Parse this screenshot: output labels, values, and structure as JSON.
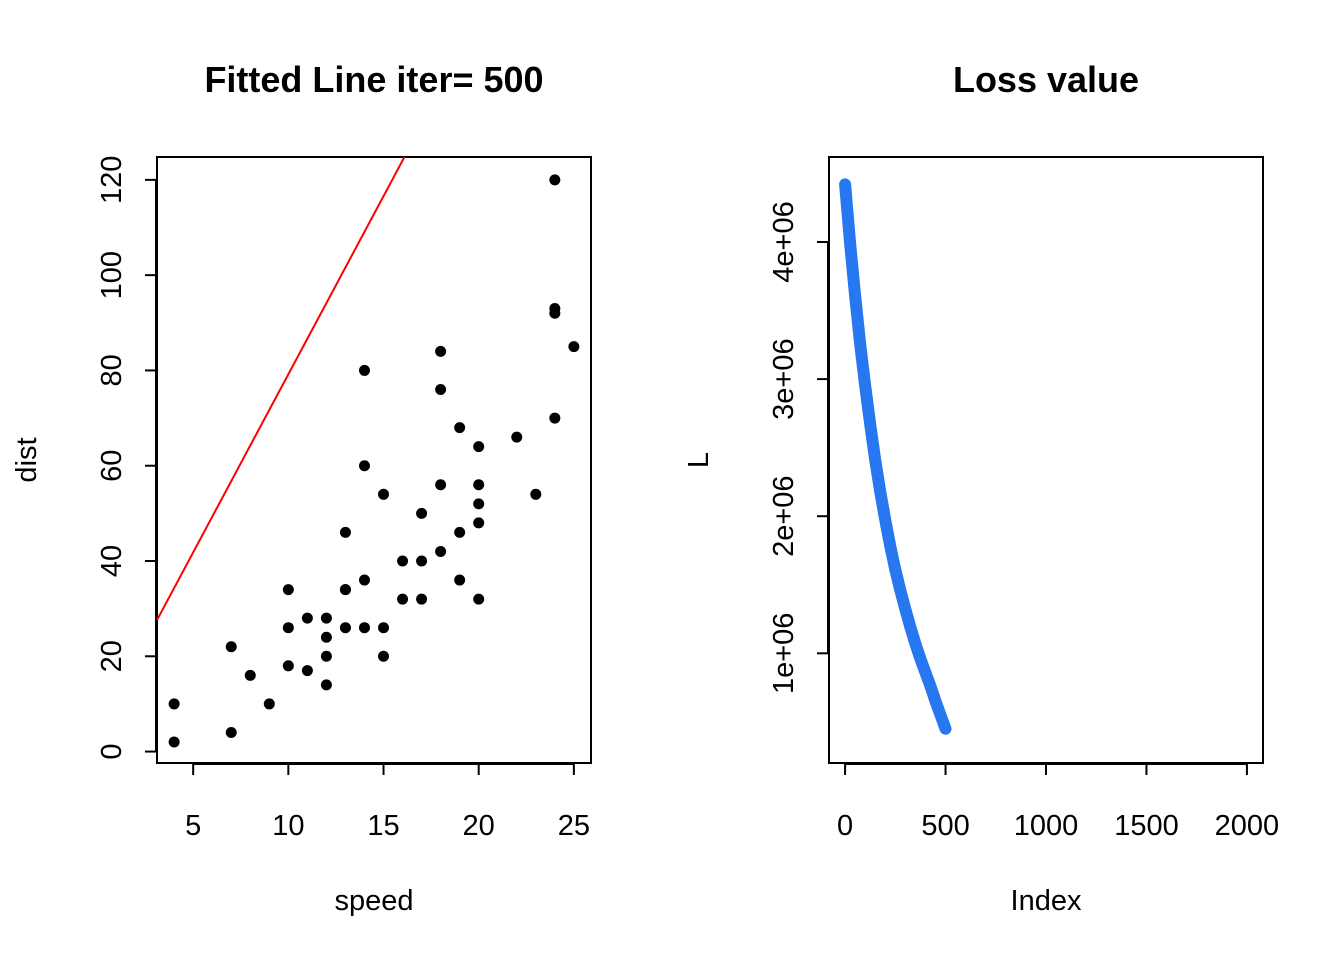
{
  "chart_data": [
    {
      "type": "scatter",
      "title": "Fitted Line iter= 500",
      "xlabel": "speed",
      "ylabel": "dist",
      "xlim": [
        3.1,
        25.9
      ],
      "ylim": [
        -2.4,
        124.8
      ],
      "xticks": [
        5,
        10,
        15,
        20,
        25
      ],
      "yticks": [
        0,
        20,
        40,
        60,
        80,
        100,
        120
      ],
      "point_color": "#000000",
      "line_color": "#ff0000",
      "points": {
        "x": [
          4,
          4,
          7,
          7,
          8,
          9,
          10,
          10,
          10,
          11,
          11,
          12,
          12,
          12,
          12,
          13,
          13,
          13,
          13,
          14,
          14,
          14,
          14,
          15,
          15,
          15,
          16,
          16,
          17,
          17,
          17,
          18,
          18,
          18,
          18,
          19,
          19,
          19,
          20,
          20,
          20,
          20,
          20,
          22,
          23,
          24,
          24,
          24,
          24,
          25
        ],
        "y": [
          2,
          10,
          4,
          22,
          16,
          10,
          18,
          26,
          34,
          17,
          28,
          14,
          20,
          24,
          28,
          26,
          34,
          34,
          46,
          26,
          36,
          60,
          80,
          20,
          26,
          54,
          32,
          40,
          32,
          40,
          50,
          42,
          56,
          76,
          84,
          36,
          46,
          68,
          32,
          48,
          52,
          56,
          64,
          66,
          54,
          70,
          92,
          93,
          120,
          85
        ]
      },
      "fitted_line": {
        "x": [
          3.1,
          16.1
        ],
        "y": [
          27.6,
          124.8
        ]
      }
    },
    {
      "type": "line",
      "title": "Loss value",
      "xlabel": "Index",
      "ylabel": "L",
      "xlim": [
        -80,
        2080
      ],
      "ylim": [
        200000,
        4620000
      ],
      "xticks": [
        0,
        500,
        1000,
        1500,
        2000
      ],
      "yticks": [
        1000000,
        2000000,
        3000000,
        4000000
      ],
      "ytick_labels": [
        "1e+06",
        "2e+06",
        "3e+06",
        "4e+06"
      ],
      "line_color": "#2777f0",
      "series": {
        "x": [
          0,
          25,
          50,
          75,
          100,
          125,
          150,
          175,
          200,
          225,
          250,
          275,
          300,
          325,
          350,
          375,
          400,
          425,
          450,
          475,
          500
        ],
        "y": [
          4420000,
          3990000,
          3610000,
          3260000,
          2950000,
          2670000,
          2410000,
          2180000,
          1970000,
          1780000,
          1610000,
          1460000,
          1320000,
          1190000,
          1070000,
          960000,
          860000,
          760000,
          650000,
          550000,
          450000
        ]
      }
    }
  ]
}
